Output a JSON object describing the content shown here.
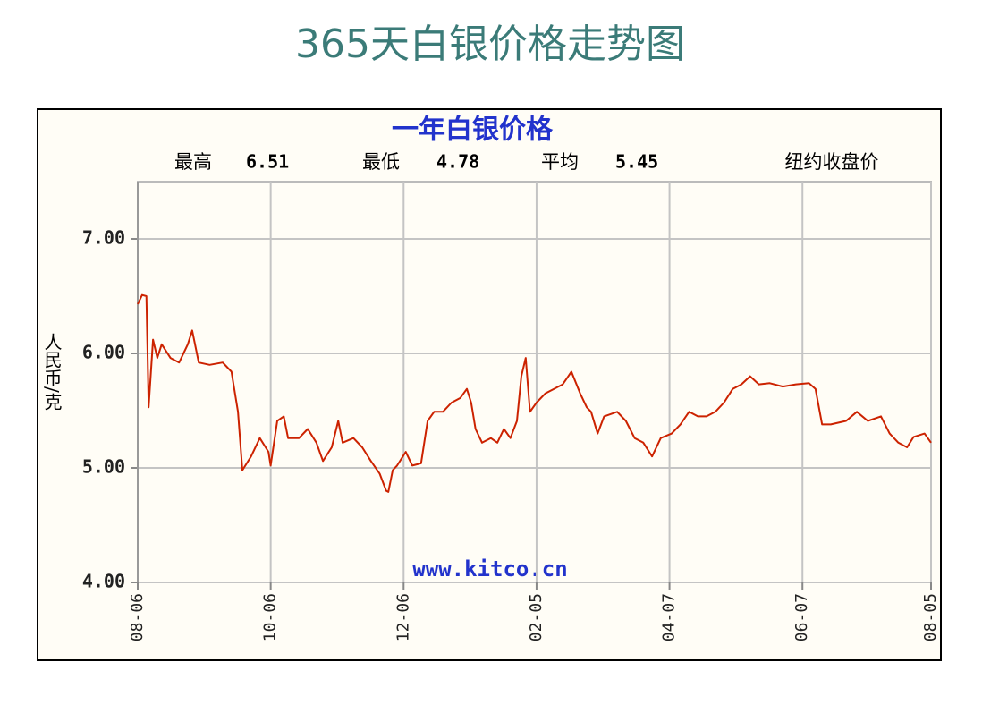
{
  "page_title": "365天白银价格走势图",
  "chart_data": {
    "type": "line",
    "title": "一年白银价格",
    "stats": [
      {
        "label": "最高",
        "value": 6.51
      },
      {
        "label": "最低",
        "value": 4.78
      },
      {
        "label": "平均",
        "value": 5.45
      }
    ],
    "note": "纽约收盘价",
    "watermark": "www.kitco.cn",
    "ylabel": "人民币/克",
    "color": "#cc2200",
    "grid": true,
    "xlim": [
      0,
      364
    ],
    "ylim": [
      4,
      7.5
    ],
    "xticks": [
      {
        "value": 0,
        "label": "08-06"
      },
      {
        "value": 61,
        "label": "10-06"
      },
      {
        "value": 122,
        "label": "12-06"
      },
      {
        "value": 183,
        "label": "02-05"
      },
      {
        "value": 244,
        "label": "04-07"
      },
      {
        "value": 305,
        "label": "06-07"
      },
      {
        "value": 364,
        "label": "08-05"
      }
    ],
    "yticks": [
      {
        "value": 4,
        "label": "4.00"
      },
      {
        "value": 5,
        "label": "5.00"
      },
      {
        "value": 6,
        "label": "6.00"
      },
      {
        "value": 7,
        "label": "7.00"
      }
    ],
    "x": [
      0,
      2,
      4,
      5,
      7,
      9,
      11,
      15,
      19,
      23,
      25,
      28,
      33,
      39,
      43,
      46,
      48,
      52,
      56,
      60,
      61,
      64,
      67,
      69,
      74,
      78,
      82,
      85,
      89,
      92,
      94,
      99,
      103,
      107,
      111,
      114,
      115,
      117,
      119,
      123,
      126,
      130,
      133,
      136,
      140,
      144,
      148,
      151,
      153,
      155,
      158,
      162,
      165,
      168,
      171,
      174,
      176,
      178,
      180,
      183,
      187,
      191,
      195,
      199,
      203,
      206,
      208,
      211,
      214,
      220,
      224,
      228,
      232,
      236,
      240,
      245,
      249,
      253,
      257,
      261,
      265,
      269,
      273,
      277,
      281,
      285,
      290,
      296,
      302,
      308,
      311,
      314,
      318,
      325,
      330,
      335,
      341,
      345,
      349,
      353,
      356,
      361,
      364
    ],
    "values": [
      6.43,
      6.51,
      6.5,
      5.53,
      6.12,
      5.96,
      6.08,
      5.96,
      5.92,
      6.08,
      6.2,
      5.92,
      5.9,
      5.92,
      5.84,
      5.49,
      4.98,
      5.1,
      5.26,
      5.14,
      5.02,
      5.41,
      5.45,
      5.26,
      5.26,
      5.34,
      5.22,
      5.06,
      5.18,
      5.41,
      5.22,
      5.26,
      5.18,
      5.06,
      4.95,
      4.8,
      4.79,
      4.98,
      5.02,
      5.14,
      5.02,
      5.04,
      5.41,
      5.49,
      5.49,
      5.57,
      5.61,
      5.69,
      5.57,
      5.34,
      5.22,
      5.26,
      5.22,
      5.34,
      5.26,
      5.41,
      5.8,
      5.96,
      5.49,
      5.57,
      5.65,
      5.69,
      5.73,
      5.84,
      5.65,
      5.53,
      5.49,
      5.3,
      5.45,
      5.49,
      5.41,
      5.26,
      5.22,
      5.1,
      5.26,
      5.3,
      5.38,
      5.49,
      5.45,
      5.45,
      5.49,
      5.57,
      5.69,
      5.73,
      5.8,
      5.73,
      5.74,
      5.71,
      5.73,
      5.74,
      5.69,
      5.38,
      5.38,
      5.41,
      5.49,
      5.41,
      5.45,
      5.3,
      5.22,
      5.18,
      5.27,
      5.3,
      5.22
    ]
  }
}
